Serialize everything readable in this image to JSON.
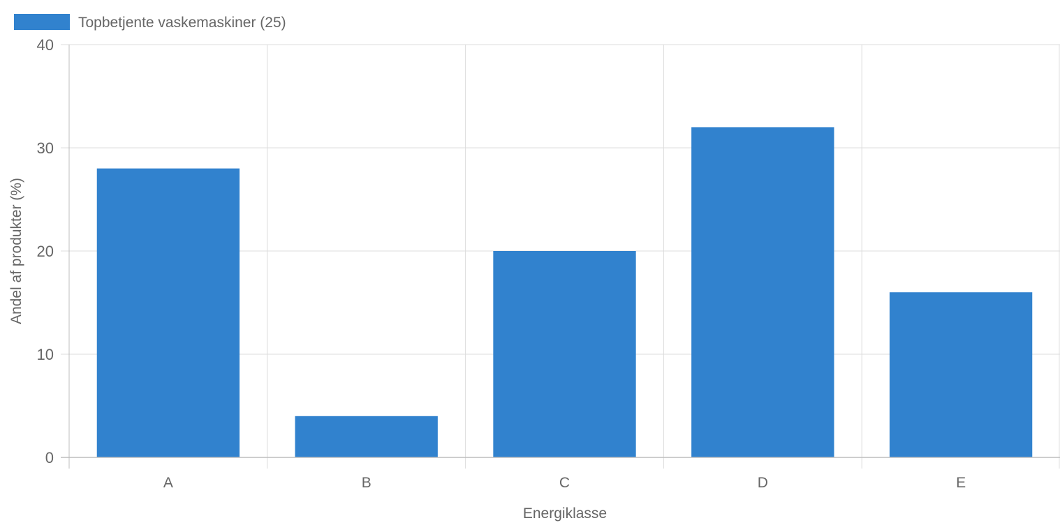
{
  "chart_data": {
    "type": "bar",
    "categories": [
      "A",
      "B",
      "C",
      "D",
      "E"
    ],
    "series": [
      {
        "name": "Topbetjente vaskemaskiner (25)",
        "values": [
          28,
          4,
          20,
          32,
          16
        ],
        "color": "#3182ce"
      }
    ],
    "xlabel": "Energiklasse",
    "ylabel": "Andel af produkter (%)",
    "ylim": [
      0,
      40
    ],
    "yticks": [
      0,
      10,
      20,
      30,
      40
    ],
    "grid": true,
    "legend_position": "top-left"
  },
  "colors": {
    "bar": "#3182ce",
    "grid": "#dcdcdc",
    "axis": "#bdbdbd",
    "text": "#666666"
  }
}
